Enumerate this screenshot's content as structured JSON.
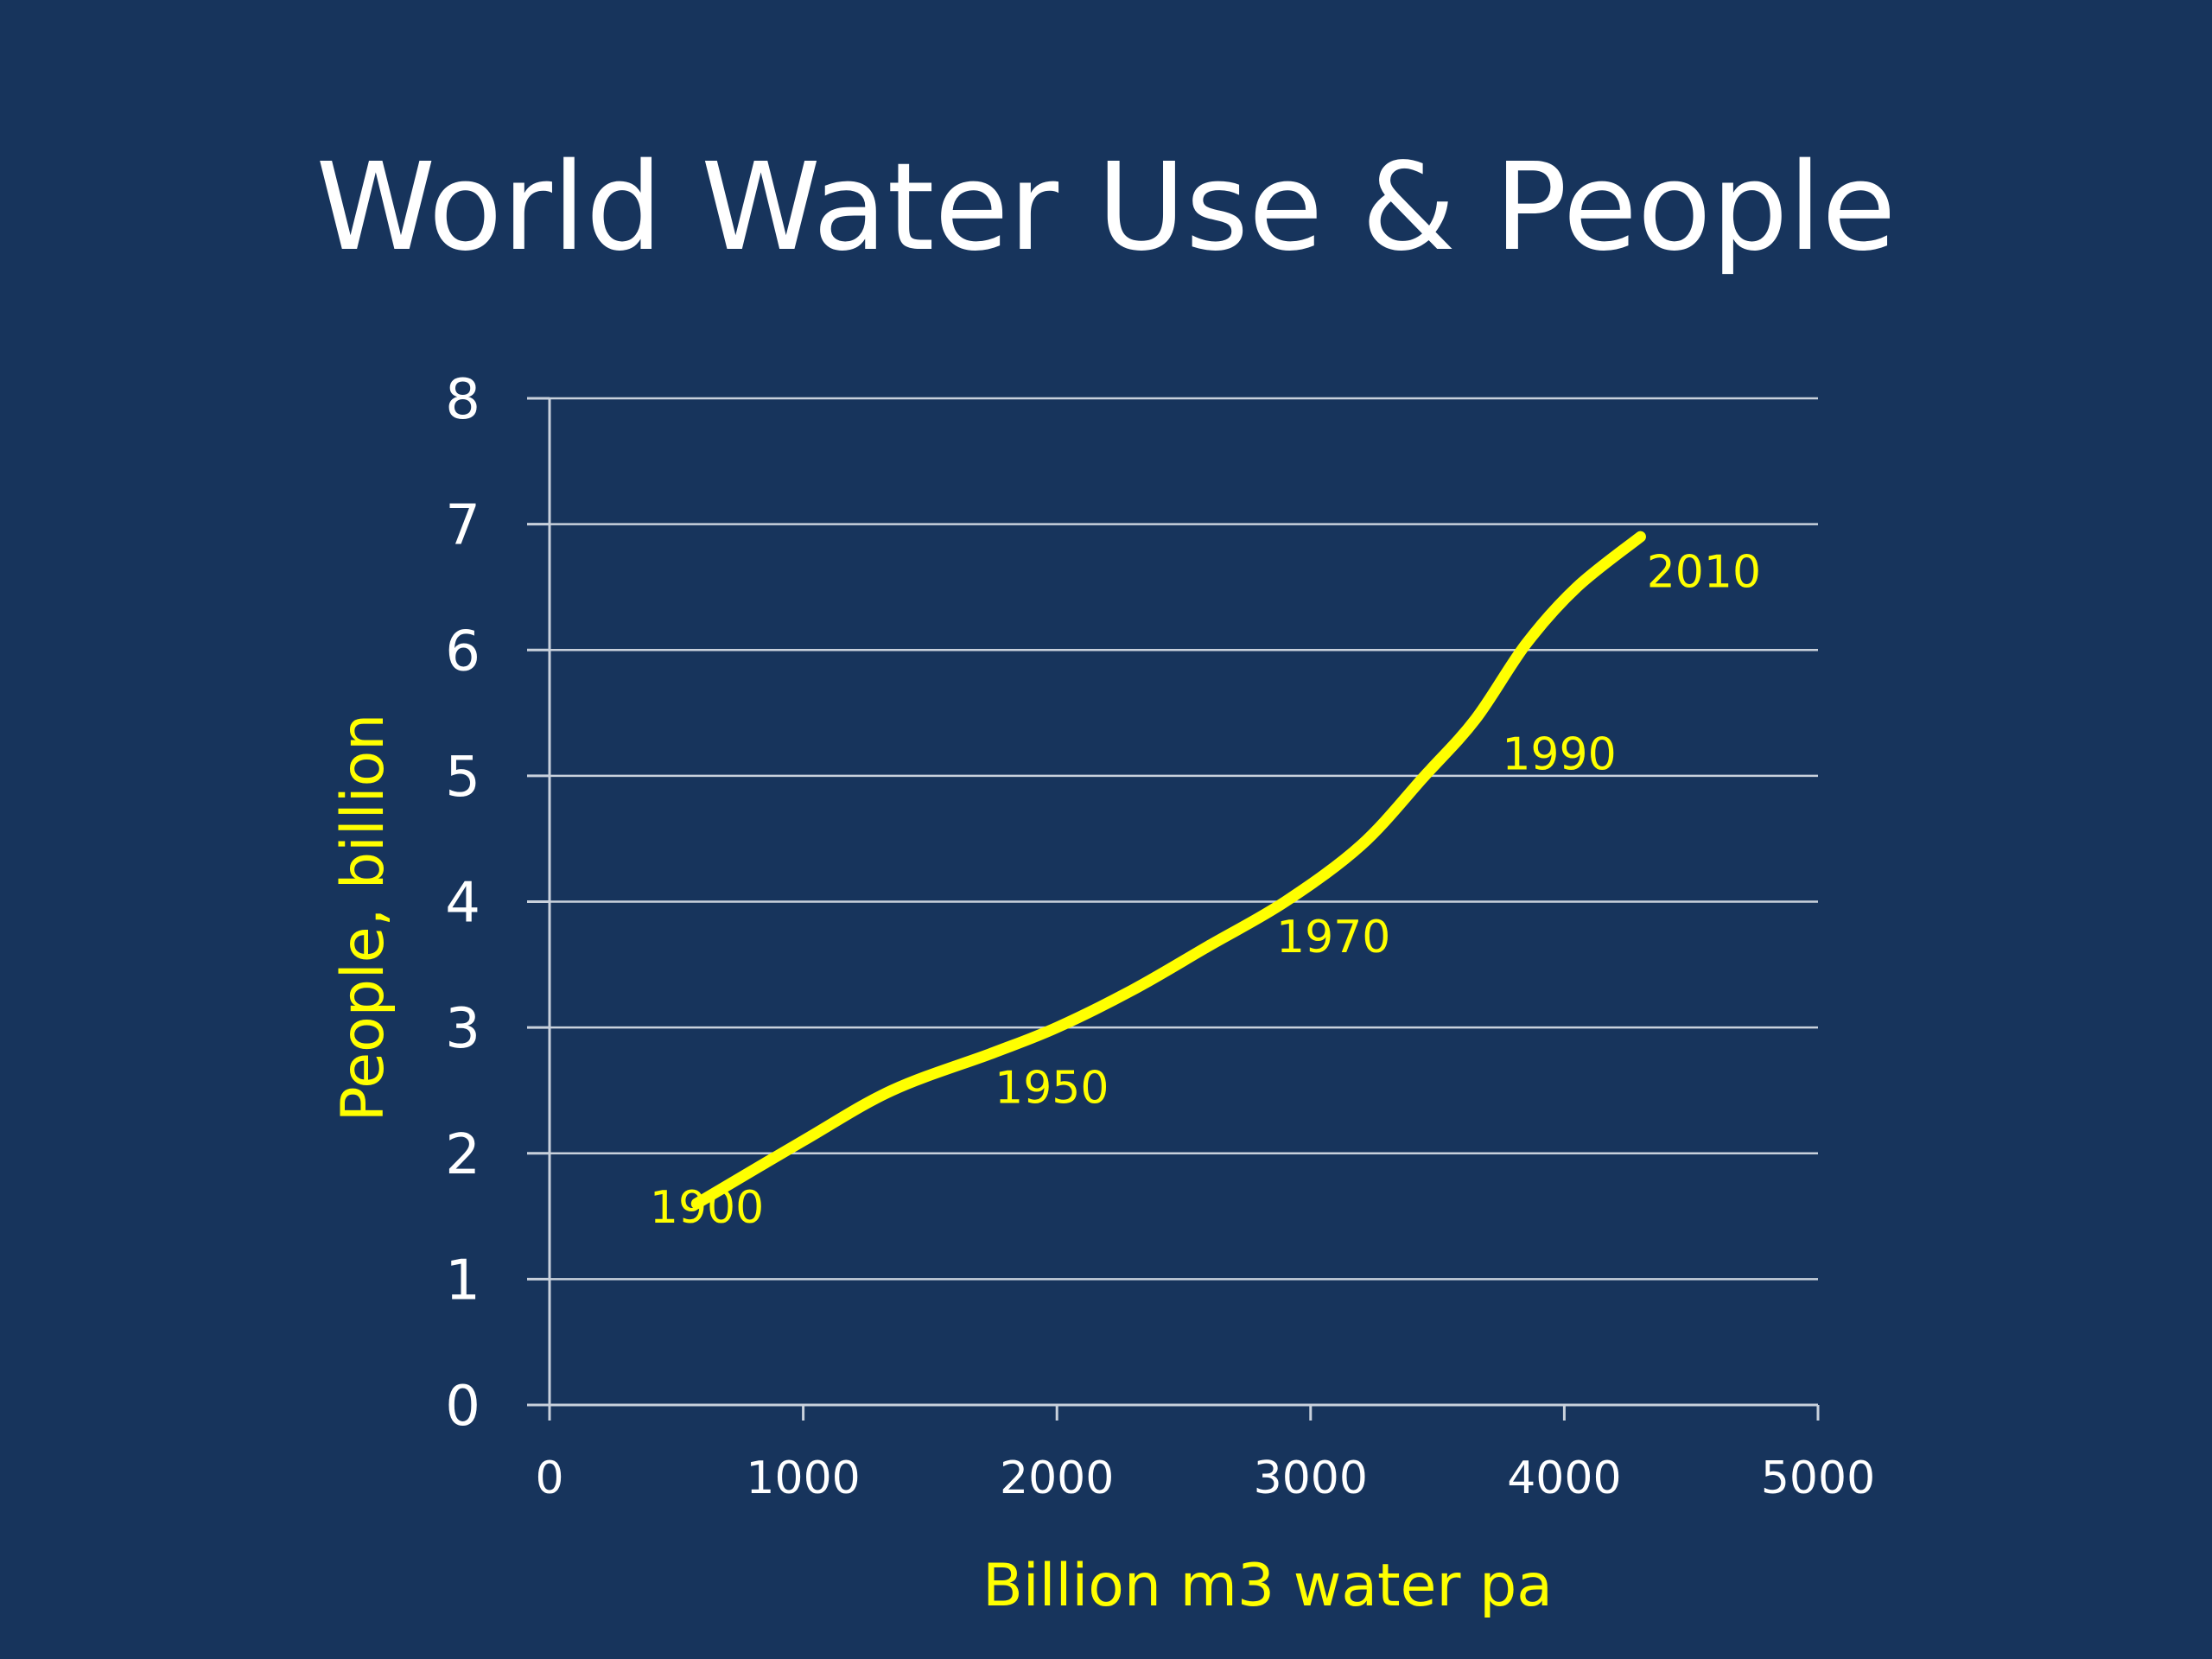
{
  "colors": {
    "background": "#17345c",
    "text": "#ffffff",
    "accent": "#ffff00",
    "grid": "#c9d1dc"
  },
  "chart_data": {
    "type": "line",
    "title": "World Water Use & People",
    "xlabel": "Billion m3 water pa",
    "ylabel": "People, billion",
    "xlim": [
      0,
      5000
    ],
    "ylim": [
      0,
      8
    ],
    "x_ticks": [
      0,
      1000,
      2000,
      3000,
      4000,
      5000
    ],
    "y_ticks": [
      0,
      1,
      2,
      3,
      4,
      5,
      6,
      7,
      8
    ],
    "grid": true,
    "legend": "none",
    "series": [
      {
        "color": "#ffff00",
        "points": [
          {
            "x": 580,
            "y": 1.6
          },
          {
            "x": 1000,
            "y": 2.1
          },
          {
            "x": 1350,
            "y": 2.5
          },
          {
            "x": 1750,
            "y": 2.8
          },
          {
            "x": 2000,
            "y": 3.0
          },
          {
            "x": 2300,
            "y": 3.3
          },
          {
            "x": 2600,
            "y": 3.65
          },
          {
            "x": 2900,
            "y": 4.0
          },
          {
            "x": 3200,
            "y": 4.45
          },
          {
            "x": 3450,
            "y": 5.0
          },
          {
            "x": 3650,
            "y": 5.45
          },
          {
            "x": 3850,
            "y": 6.05
          },
          {
            "x": 4050,
            "y": 6.5
          },
          {
            "x": 4300,
            "y": 6.9
          }
        ]
      }
    ],
    "annotations": [
      {
        "text": "1900",
        "x": 620,
        "y": 1.45
      },
      {
        "text": "1950",
        "x": 1980,
        "y": 2.4
      },
      {
        "text": "1970",
        "x": 3090,
        "y": 3.6
      },
      {
        "text": "1990",
        "x": 3980,
        "y": 5.05
      },
      {
        "text": "2010",
        "x": 4550,
        "y": 6.5
      }
    ]
  }
}
